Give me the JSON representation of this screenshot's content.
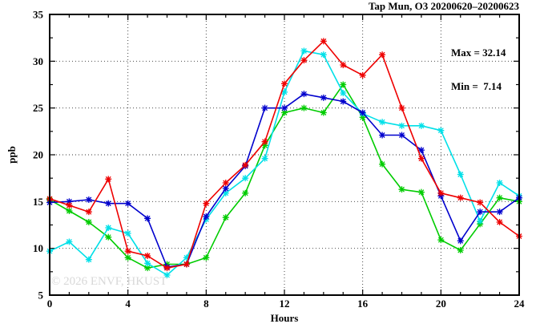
{
  "title": "Tap Mun, O3 20200620–20200623",
  "annotation": {
    "max_label": "Max = 32.14",
    "min_label": "Min =  7.14"
  },
  "watermark": "© 2026 ENVF, HKUST",
  "chart_data": {
    "type": "line",
    "title": "Tap Mun, O3 20200620–20200623",
    "xlabel": "Hours",
    "ylabel": "ppb",
    "xlim": [
      0,
      24
    ],
    "ylim": [
      5,
      35
    ],
    "xticks": [
      0,
      4,
      8,
      12,
      16,
      20,
      24
    ],
    "yticks": [
      5,
      10,
      15,
      20,
      25,
      30,
      35
    ],
    "x_minor_step": 1,
    "y_minor_step": 2.5,
    "grid_x": [
      4,
      8,
      12,
      16,
      20
    ],
    "grid_y": [
      10,
      15,
      20,
      25,
      30
    ],
    "grid": true,
    "legend": "none",
    "marker": "asterisk",
    "max": 32.14,
    "min": 7.14,
    "x": [
      0,
      1,
      2,
      3,
      4,
      5,
      6,
      7,
      8,
      9,
      10,
      11,
      12,
      13,
      14,
      15,
      16,
      17,
      18,
      19,
      20,
      21,
      22,
      23,
      24
    ],
    "series": [
      {
        "name": "green",
        "color": "#00cc00",
        "values": [
          15.2,
          14.0,
          12.8,
          11.2,
          9.0,
          7.9,
          8.3,
          8.3,
          9.0,
          13.3,
          15.9,
          21.0,
          24.5,
          25.0,
          24.5,
          27.5,
          24.0,
          19.0,
          16.3,
          16.0,
          10.9,
          9.8,
          12.6,
          15.4,
          15.0
        ]
      },
      {
        "name": "cyan",
        "color": "#00e0e8",
        "values": [
          9.7,
          10.7,
          8.8,
          12.2,
          11.6,
          8.4,
          7.14,
          9.0,
          13.1,
          15.9,
          17.5,
          19.6,
          26.7,
          31.1,
          30.7,
          26.6,
          24.4,
          23.5,
          23.1,
          23.1,
          22.6,
          17.9,
          12.9,
          17.0,
          15.6
        ]
      },
      {
        "name": "blue",
        "color": "#0000cd",
        "values": [
          14.9,
          15.0,
          15.2,
          14.8,
          14.8,
          13.2,
          8.0,
          8.3,
          13.4,
          16.4,
          18.8,
          25.0,
          25.0,
          26.5,
          26.1,
          25.7,
          24.5,
          22.1,
          22.1,
          20.5,
          15.6,
          10.8,
          13.9,
          13.9,
          15.4
        ]
      },
      {
        "name": "red",
        "color": "#ee0000",
        "values": [
          15.3,
          14.6,
          13.9,
          17.4,
          9.7,
          9.2,
          7.9,
          8.3,
          14.8,
          17.0,
          18.9,
          21.4,
          27.6,
          30.1,
          32.14,
          29.6,
          28.5,
          30.7,
          25.0,
          19.6,
          15.9,
          15.4,
          14.9,
          12.8,
          11.3
        ]
      }
    ]
  }
}
